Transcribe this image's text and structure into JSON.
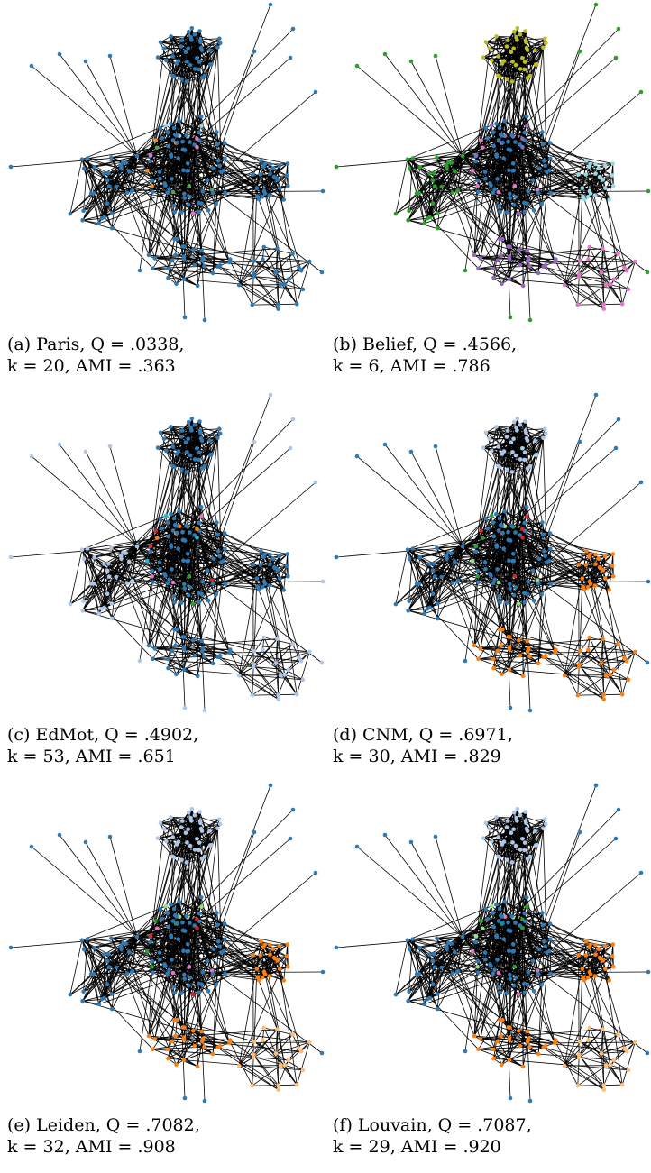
{
  "panels": [
    {
      "id": "a",
      "caption_line1": "(a) Paris, Q = .0338,",
      "caption_line2": "k = 20, AMI = .363",
      "palette": {
        "big": "#2f7ab5",
        "top": "#2f7ab5",
        "left": "#2f7ab5",
        "right": "#2f7ab5",
        "lower": "#2f7ab5",
        "far": "#2f7ab5",
        "accent": [
          "#f28e2b",
          "#9cd3ea",
          "#59a14f",
          "#e377c2"
        ]
      }
    },
    {
      "id": "b",
      "caption_line1": "(b) Belief, Q = .4566,",
      "caption_line2": "k = 6, AMI = .786",
      "palette": {
        "big": "#2f7ab5",
        "top": "#bcbd22",
        "left": "#2ca02c",
        "right": "#9edae5",
        "lower": "#9467bd",
        "far": "#e377c2",
        "accent": [
          "#e377c2",
          "#9467bd"
        ]
      }
    },
    {
      "id": "c",
      "caption_line1": "(c) EdMot, Q = .4902,",
      "caption_line2": "k = 53, AMI = .651",
      "palette": {
        "big": "#2f7ab5",
        "top": "#2f7ab5",
        "left": "#aec7e8",
        "right": "#2f7ab5",
        "lower": "#2f7ab5",
        "far": "#aec7e8",
        "accent": [
          "#ff7f0e",
          "#2ca02c",
          "#d62728",
          "#17becf",
          "#e377c2"
        ]
      }
    },
    {
      "id": "d",
      "caption_line1": "(d) CNM, Q = .6971,",
      "caption_line2": "k = 30, AMI = .829",
      "palette": {
        "big": "#2f7ab5",
        "top": "#aec7e8",
        "left": "#2f7ab5",
        "right": "#ff7f0e",
        "lower": "#ff7f0e",
        "far": "#ff7f0e",
        "accent": [
          "#d62728",
          "#2ca02c",
          "#98df8a"
        ]
      }
    },
    {
      "id": "e",
      "caption_line1": "(e) Leiden, Q = .7082,",
      "caption_line2": "k = 32, AMI = .908",
      "palette": {
        "big": "#2f7ab5",
        "top": "#aec7e8",
        "left": "#2f7ab5",
        "right": "#ff7f0e",
        "lower": "#ff7f0e",
        "far": "#ffbb78",
        "accent": [
          "#2ca02c",
          "#98df8a",
          "#e377c2",
          "#d62728"
        ]
      }
    },
    {
      "id": "f",
      "caption_line1": "(f) Louvain, Q = .7087,",
      "caption_line2": "k = 29, AMI = .920",
      "palette": {
        "big": "#2f7ab5",
        "top": "#aec7e8",
        "left": "#2f7ab5",
        "right": "#ff7f0e",
        "lower": "#ff7f0e",
        "far": "#ffbb78",
        "accent": [
          "#2ca02c",
          "#98df8a",
          "#e377c2"
        ]
      }
    }
  ]
}
